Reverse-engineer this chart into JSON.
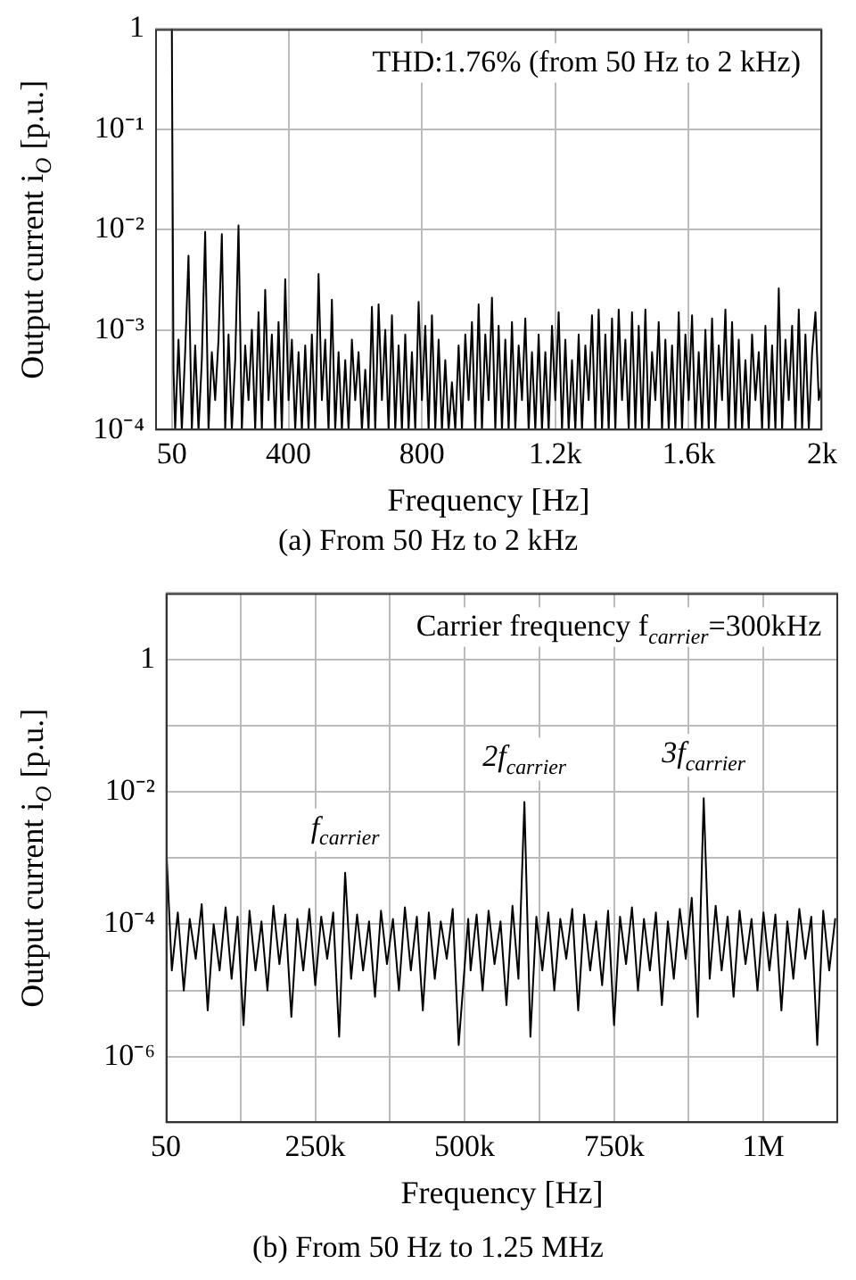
{
  "chart_data": [
    {
      "type": "line",
      "xlabel": "Frequency [Hz]",
      "ylabel": "Output current i$_{O}$ [p.u.]",
      "log": "y",
      "grid": true,
      "xlim": [
        0,
        2000
      ],
      "xticks": [
        50,
        400,
        800,
        {
          "value": 1200,
          "label": "1.2k"
        },
        {
          "value": 1600,
          "label": "1.6k"
        },
        {
          "value": 2000,
          "label": "2k"
        }
      ],
      "ylim": [
        0.0001,
        1
      ],
      "yticks": [
        {
          "value": 0.0001,
          "label": "10⁻⁴"
        },
        {
          "value": 0.001,
          "label": "10⁻³"
        },
        {
          "value": 0.01,
          "label": "10⁻²"
        },
        {
          "value": 0.1,
          "label": "10⁻¹"
        },
        1
      ],
      "annotations": [
        "THD:1.76% (from 50 Hz to 2 kHz)",
        "(a) From 50 Hz to 2 kHz"
      ],
      "series": [
        {
          "color": "#000000",
          "x": [
            50,
            55,
            60,
            70,
            80,
            90,
            100,
            110,
            120,
            130,
            140,
            150,
            160,
            170,
            180,
            190,
            200,
            210,
            220,
            230,
            240,
            250,
            260,
            270,
            280,
            290,
            300,
            310,
            320,
            330,
            340,
            350,
            360,
            370,
            380,
            390,
            400,
            410,
            420,
            430,
            440,
            450,
            460,
            470,
            480,
            490,
            500,
            510,
            520,
            530,
            540,
            550,
            560,
            570,
            580,
            590,
            600,
            610,
            620,
            630,
            640,
            650,
            660,
            670,
            680,
            690,
            700,
            710,
            720,
            730,
            740,
            750,
            760,
            770,
            780,
            790,
            800,
            810,
            820,
            830,
            840,
            850,
            860,
            870,
            880,
            890,
            900,
            910,
            920,
            930,
            940,
            950,
            960,
            970,
            980,
            990,
            1000,
            1010,
            1020,
            1030,
            1040,
            1050,
            1060,
            1070,
            1080,
            1090,
            1100,
            1110,
            1120,
            1130,
            1140,
            1150,
            1160,
            1170,
            1180,
            1190,
            1200,
            1210,
            1220,
            1230,
            1240,
            1250,
            1260,
            1270,
            1280,
            1290,
            1300,
            1310,
            1320,
            1330,
            1340,
            1350,
            1360,
            1370,
            1380,
            1390,
            1400,
            1410,
            1420,
            1430,
            1440,
            1450,
            1460,
            1470,
            1480,
            1490,
            1500,
            1510,
            1520,
            1530,
            1540,
            1550,
            1560,
            1570,
            1580,
            1590,
            1600,
            1610,
            1620,
            1630,
            1640,
            1650,
            1660,
            1670,
            1680,
            1690,
            1700,
            1710,
            1720,
            1730,
            1740,
            1750,
            1760,
            1770,
            1780,
            1790,
            1800,
            1810,
            1820,
            1830,
            1840,
            1850,
            1860,
            1870,
            1880,
            1890,
            1900,
            1910,
            1920,
            1930,
            1940,
            1950,
            1960,
            1970,
            1980,
            1990,
            2000
          ],
          "values": [
            1,
            0.0004,
            0.0001,
            0.0008,
            0.0001,
            0.0006,
            0.0055,
            0.0001,
            0.0007,
            0.0001,
            0.0005,
            0.0095,
            0.0001,
            0.0006,
            0.0002,
            0.0008,
            0.009,
            0.0001,
            0.0009,
            0.0001,
            0.0005,
            0.011,
            0.0001,
            0.0007,
            0.0002,
            0.001,
            0.0001,
            0.0015,
            0.0001,
            0.0025,
            0.0002,
            0.0009,
            0.0001,
            0.0012,
            0.0001,
            0.0032,
            0.0002,
            0.0008,
            0.0001,
            0.0006,
            0.0001,
            0.0007,
            0.0001,
            0.0009,
            0.0001,
            0.0036,
            0.0002,
            0.0008,
            0.0001,
            0.002,
            0.0001,
            0.0006,
            0.0001,
            0.0005,
            0.0001,
            0.0008,
            0.0002,
            0.0006,
            0.0001,
            0.0004,
            0.0001,
            0.0017,
            0.0001,
            0.0018,
            0.0002,
            0.001,
            0.0001,
            0.0014,
            0.0001,
            0.0007,
            0.0001,
            0.0009,
            0.0001,
            0.0006,
            0.0001,
            0.0019,
            0.0002,
            0.0011,
            0.0001,
            0.0014,
            0.0001,
            0.0008,
            0.0001,
            0.0005,
            0.0001,
            0.0003,
            0.0001,
            0.0007,
            0.0001,
            0.0009,
            0.0002,
            0.0012,
            0.0001,
            0.0018,
            0.0001,
            0.0009,
            0.0002,
            0.0021,
            0.0001,
            0.0011,
            0.0001,
            0.0008,
            0.0001,
            0.0012,
            0.0001,
            0.0007,
            0.0002,
            0.0013,
            0.0001,
            0.0006,
            0.0001,
            0.0009,
            0.0001,
            0.0006,
            0.0001,
            0.0011,
            0.0002,
            0.0015,
            0.0001,
            0.0008,
            0.0001,
            0.0005,
            0.0001,
            0.0009,
            0.0001,
            0.0007,
            0.0002,
            0.0014,
            0.0001,
            0.0016,
            0.0001,
            0.0009,
            0.0001,
            0.0013,
            0.0001,
            0.0016,
            0.0002,
            0.0008,
            0.0001,
            0.0015,
            0.0001,
            0.0011,
            0.0001,
            0.0016,
            0.0001,
            0.0006,
            0.0002,
            0.0012,
            0.0001,
            0.0008,
            0.0001,
            0.0007,
            0.0001,
            0.0015,
            0.0001,
            0.0009,
            0.0002,
            0.0014,
            0.0001,
            0.0006,
            0.0001,
            0.001,
            0.0001,
            0.0013,
            0.0001,
            0.0007,
            0.0002,
            0.0016,
            0.0001,
            0.0012,
            0.0001,
            0.0008,
            0.0001,
            0.0005,
            0.0001,
            0.0009,
            0.0002,
            0.0006,
            0.0001,
            0.0011,
            0.0001,
            0.0007,
            0.0001,
            0.0026,
            0.0001,
            0.0008,
            0.0002,
            0.0011,
            0.0001,
            0.0016,
            0.0001,
            0.0009,
            0.0001,
            0.0006,
            0.0015,
            0.0002,
            0.0003
          ]
        }
      ]
    },
    {
      "type": "line",
      "xlabel": "Frequency [Hz]",
      "ylabel": "Output current i$_{O}$ [p.u.]",
      "log": "y",
      "grid": true,
      "xlim": [
        0,
        1125000
      ],
      "xticks": [
        50,
        {
          "value": 125000,
          "label": null
        },
        {
          "value": 250000,
          "label": "250k"
        },
        {
          "value": 375000,
          "label": null
        },
        {
          "value": 500000,
          "label": "500k"
        },
        {
          "value": 625000,
          "label": null
        },
        {
          "value": 750000,
          "label": "750k"
        },
        {
          "value": 875000,
          "label": null
        },
        {
          "value": 1000000,
          "label": "1M"
        }
      ],
      "ylim": [
        1e-07,
        10
      ],
      "yticks": [
        {
          "value": 1e-07,
          "label": null
        },
        {
          "value": 1e-06,
          "label": "10⁻⁶"
        },
        {
          "value": 1e-05,
          "label": null
        },
        {
          "value": 0.0001,
          "label": "10⁻⁴"
        },
        {
          "value": 0.001,
          "label": null
        },
        {
          "value": 0.01,
          "label": "10⁻²"
        },
        {
          "value": 0.1,
          "label": null
        },
        1,
        {
          "value": 10,
          "label": null
        }
      ],
      "annotations": [
        "Carrier frequency f$_{carrier}$=300kHz",
        {
          "text": "f$_{carrier}$",
          "x": 300000,
          "y": 0.0006
        },
        {
          "text": "2f$_{carrier}$",
          "x": 600000,
          "y": 0.007
        },
        {
          "text": "3f$_{carrier}$",
          "x": 900000,
          "y": 0.008
        },
        "(b) From 50 Hz to 1.25 MHz"
      ],
      "series": [
        {
          "color": "#000000",
          "x": [
            50,
            5000,
            10000,
            20000,
            30000,
            40000,
            50000,
            60000,
            70000,
            80000,
            90000,
            100000,
            110000,
            120000,
            130000,
            140000,
            150000,
            160000,
            170000,
            180000,
            190000,
            200000,
            210000,
            220000,
            230000,
            240000,
            250000,
            260000,
            270000,
            280000,
            290000,
            300000,
            310000,
            320000,
            330000,
            340000,
            350000,
            360000,
            370000,
            380000,
            390000,
            400000,
            410000,
            420000,
            430000,
            440000,
            450000,
            460000,
            470000,
            480000,
            490000,
            506000,
            510000,
            520000,
            530000,
            540000,
            550000,
            560000,
            570000,
            580000,
            590000,
            600000,
            610000,
            620000,
            630000,
            640000,
            650000,
            660000,
            670000,
            680000,
            690000,
            700000,
            710000,
            720000,
            730000,
            740000,
            750000,
            760000,
            770000,
            780000,
            790000,
            800000,
            810000,
            820000,
            830000,
            840000,
            850000,
            860000,
            870000,
            880000,
            890000,
            900000,
            910000,
            920000,
            930000,
            940000,
            950000,
            960000,
            970000,
            980000,
            990000,
            1000000,
            1010000,
            1020000,
            1030000,
            1040000,
            1050000,
            1060000,
            1070000,
            1080000,
            1090000,
            1100000,
            1110000,
            1120000
          ],
          "values": [
            0.002,
            0.0002,
            2e-05,
            0.00015,
            1e-05,
            0.00012,
            3e-05,
            0.0002,
            5e-06,
            0.0001,
            2e-05,
            0.00018,
            1.5e-05,
            0.00013,
            3e-06,
            0.00016,
            2e-05,
            0.00011,
            1e-05,
            0.00019,
            2.5e-05,
            0.00014,
            4e-06,
            0.00012,
            2e-05,
            0.00017,
            1.2e-05,
            0.00013,
            3e-05,
            0.00015,
            2e-06,
            0.0006,
            1.5e-05,
            0.00014,
            2e-05,
            0.00011,
            8e-06,
            0.00016,
            2.5e-05,
            0.00012,
            1e-05,
            0.00018,
            2e-05,
            0.00013,
            5e-06,
            0.00015,
            1.5e-05,
            0.00011,
            3e-05,
            0.00017,
            1.5e-06,
            0.00012,
            2e-05,
            0.00014,
            1e-05,
            0.00016,
            2.5e-05,
            0.00011,
            6e-06,
            0.00019,
            1.5e-05,
            0.007,
            2e-06,
            0.00013,
            2e-05,
            0.00015,
            1e-05,
            0.00012,
            3e-05,
            0.00017,
            5e-06,
            0.00014,
            2e-05,
            0.00011,
            1.2e-05,
            0.00016,
            3e-06,
            0.00013,
            2.5e-05,
            0.00018,
            1e-05,
            0.00012,
            2e-05,
            0.00015,
            6e-06,
            0.00011,
            1.5e-05,
            0.00017,
            3e-05,
            0.00025,
            4e-06,
            0.008,
            1.5e-05,
            0.00019,
            2e-05,
            0.00013,
            8e-06,
            0.00016,
            2.5e-05,
            0.00012,
            1e-05,
            0.00015,
            2e-05,
            0.00014,
            5e-06,
            0.00011,
            1.5e-05,
            0.00017,
            3e-05,
            0.00013,
            1.5e-06,
            0.00016,
            2e-05,
            0.00012
          ]
        }
      ]
    }
  ]
}
